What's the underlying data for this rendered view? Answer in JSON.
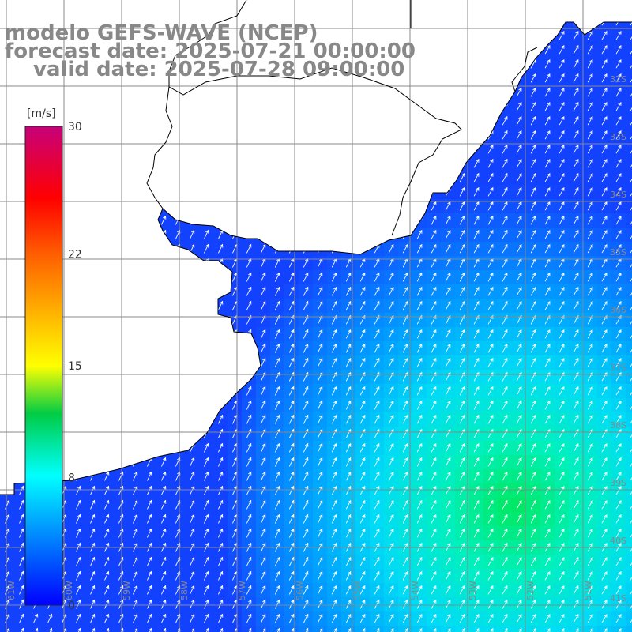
{
  "title": {
    "line1": "modelo GEFS-WAVE (NCEP)",
    "line2": "forecast date: 2025-07-21 00:00:00",
    "line3": "valid date: 2025-07-28 09:00:00"
  },
  "colorbar": {
    "unit": "[m/s]",
    "ticks": [
      "30",
      "22",
      "15",
      "8",
      "0"
    ],
    "tick_values": [
      30,
      22,
      15,
      8,
      0
    ],
    "range": [
      0,
      30
    ],
    "colors": [
      "#0000ff",
      "#00ffff",
      "#00cc00",
      "#ffff00",
      "#ff8000",
      "#ff0000",
      "#cc0066"
    ]
  },
  "lat_labels": [
    "32S",
    "33S",
    "34S",
    "35S",
    "36S",
    "37S",
    "38S",
    "39S",
    "40S",
    "41S"
  ],
  "lon_labels": [
    "61W",
    "60W",
    "59W",
    "58W",
    "57W",
    "56W",
    "55W",
    "54W",
    "53W",
    "52W",
    "51W"
  ],
  "colors": {
    "land": "#ffffff",
    "grid": "#888888",
    "coast": "#000000",
    "arrows": "#ffffff",
    "label_gray": "#888888"
  }
}
